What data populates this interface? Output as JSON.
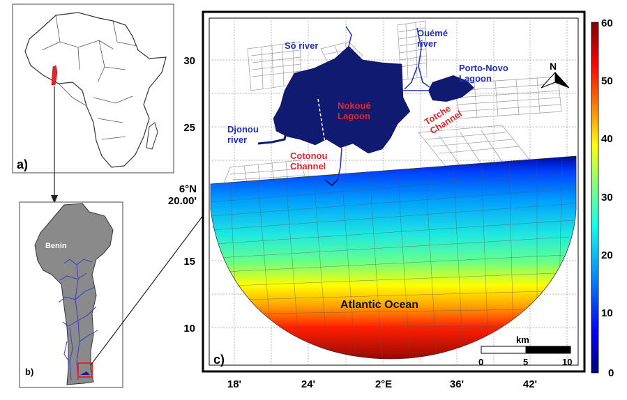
{
  "panels": {
    "a": {
      "tag": "a)"
    },
    "b": {
      "tag": "b)",
      "country": "Benin"
    },
    "c": {
      "tag": "c)"
    }
  },
  "map": {
    "lat_ticks": [
      "30",
      "25",
      "6°N\n20.00'",
      "15",
      "10"
    ],
    "lon_ticks": [
      "18'",
      "24'",
      "2°E",
      "36'",
      "42'"
    ],
    "places": [
      {
        "text": "Sô river",
        "color": "#1f2fbf"
      },
      {
        "text": "Ouémé\nriver",
        "color": "#1f2fbf"
      },
      {
        "text": "Porto-Novo\nLagoon",
        "color": "#1f2fbf"
      },
      {
        "text": "Djonou\nriver",
        "color": "#1f2fbf"
      },
      {
        "text": "Nokoué\nLagoon",
        "color": "#e3262b"
      },
      {
        "text": "Totche\nChannel",
        "color": "#e3262b"
      },
      {
        "text": "Cotonou\nChannel",
        "color": "#e3262b"
      },
      {
        "text": "Atlantic Ocean",
        "color": "#111111"
      }
    ],
    "north_label": "N",
    "scalebar": {
      "unit": "km",
      "ticks": [
        "0",
        "5",
        "10"
      ]
    }
  },
  "colorbar": {
    "ticks": [
      "60",
      "50",
      "40",
      "30",
      "20",
      "10",
      "0"
    ],
    "min": 0,
    "max": 60,
    "colors": [
      "#00007f",
      "#0000ff",
      "#0090ff",
      "#10ffef",
      "#90ff70",
      "#ffff00",
      "#ff8000",
      "#ff0000",
      "#7f0000"
    ]
  },
  "colors": {
    "lagoon": "#101a70",
    "river": "#1f2fbf",
    "grid": "#888888",
    "highlight": "#e3262b",
    "land": "#8a8a8a"
  }
}
